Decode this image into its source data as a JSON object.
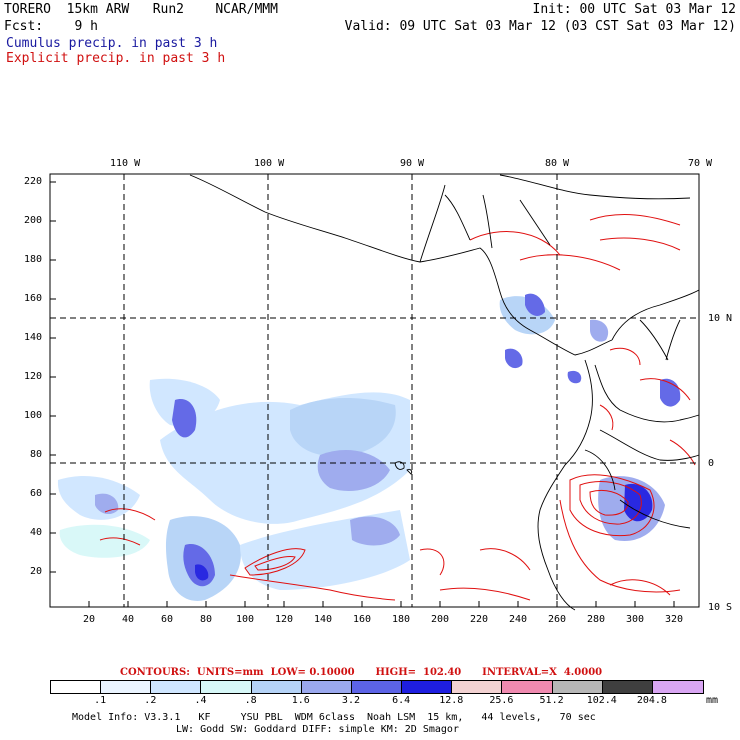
{
  "header": {
    "line1_left": "TORERO  15km ARW   Run2    NCAR/MMM",
    "line1_right": "Init: 00 UTC Sat 03 Mar 12",
    "line2_left": "Fcst:    9 h",
    "line2_right": "Valid: 09 UTC Sat 03 Mar 12 (03 CST Sat 03 Mar 12)",
    "line3": "Cumulus precip. in past 3 h",
    "line4": "Explicit precip. in past 3 h"
  },
  "map": {
    "top_lon_labels": [
      "110 W",
      "100 W",
      "90 W",
      "80 W",
      "70 W"
    ],
    "right_lat_labels": [
      "10 N",
      "0",
      "10 S"
    ],
    "y_ticks": [
      "220",
      "200",
      "180",
      "160",
      "140",
      "120",
      "100",
      "80",
      "60",
      "40",
      "20"
    ],
    "x_ticks": [
      "20",
      "40",
      "60",
      "80",
      "100",
      "120",
      "140",
      "160",
      "180",
      "200",
      "220",
      "240",
      "260",
      "280",
      "300",
      "320"
    ]
  },
  "contours": {
    "line": "CONTOURS:  UNITS=mm  LOW= 0.10000      HIGH=  102.40      INTERVAL=X  4.0000"
  },
  "legend": {
    "labels": [
      ".1",
      ".2",
      ".4",
      ".8",
      "1.6",
      "3.2",
      "6.4",
      "12.8",
      "25.6",
      "51.2",
      "102.4",
      "204.8"
    ],
    "unit": "mm",
    "colors": [
      "#ffffff",
      "#eaf4ff",
      "#cfe6ff",
      "#d7f8f8",
      "#b5d3f7",
      "#9aa8ee",
      "#5c63e6",
      "#1e1ee0",
      "#f3d2d2",
      "#f08ab0",
      "#b7b7b7",
      "#3f3f3f",
      "#d9a6f3"
    ]
  },
  "footer": {
    "line1": "Model Info: V3.3.1   KF     YSU PBL  WDM 6class  Noah LSM  15 km,   44 levels,   70 sec",
    "line2": "LW: Godd SW: Goddard DIFF: simple KM: 2D Smagor"
  }
}
